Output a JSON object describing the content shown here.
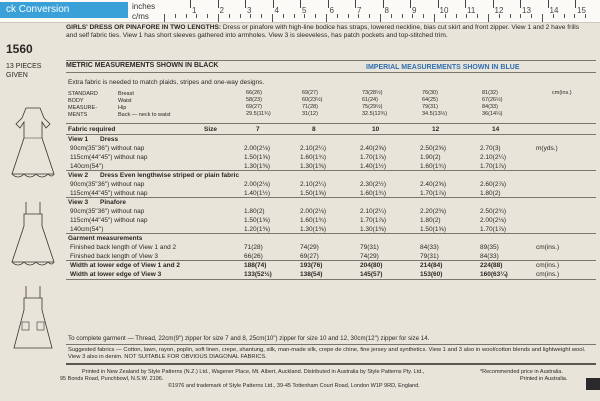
{
  "topbar": {
    "conversion_tab": "ck Conversion",
    "inches_label": "inches",
    "cms_label": "c/ms",
    "inch_numbers": [
      "1",
      "2",
      "3",
      "4",
      "5",
      "6",
      "7",
      "8",
      "9",
      "10",
      "11",
      "12",
      "13",
      "14",
      "15"
    ]
  },
  "pattern": {
    "number": "1560",
    "pieces": [
      "13 PIECES",
      "GIVEN"
    ]
  },
  "header": {
    "title": "GIRLS' DRESS OR PINAFORE IN TWO LENGTHS:",
    "desc": "Dress or pinafore with high-line bodice has straps, lowered neckline, bias cut skirt and front zipper. View 1 and 2 have frills and self fabric ties. View 1 has short sleeves gathered into armholes. View 3 is sleeveless, has patch pockets and top-stitched trim."
  },
  "metric_label": "METRIC MEASUREMENTS SHOWN IN BLACK",
  "imperial_label": "IMPERIAL MEASUREMENTS SHOWN IN BLUE",
  "extra_fabric": "Extra fabric is needed to match plaids, stripes and one-way designs.",
  "body_measurements": {
    "labels": [
      "STANDARD",
      "BODY",
      "MEASURE-",
      "MENTS"
    ],
    "rows": [
      "Breast",
      "Waist",
      "Hip",
      "Back — neck to waist"
    ],
    "cols": [
      [
        "66(26)",
        "58(23)",
        "69(27)",
        "29.5(11¾)"
      ],
      [
        "69(27)",
        "60(23½)",
        "71(28)",
        "31(12)"
      ],
      [
        "73(28½)",
        "61(24)",
        "75(29½)",
        "32.5(12¾)"
      ],
      [
        "76(30)",
        "64(25)",
        "79(31)",
        "34.5(13½)"
      ],
      [
        "81(32)",
        "67(26½)",
        "84(33)",
        "36(14¼)"
      ]
    ],
    "unit": "cm(ins.)"
  },
  "fabric_required": "Fabric required",
  "size_label": "Size",
  "sizes": [
    "7",
    "8",
    "10",
    "12",
    "14"
  ],
  "views": [
    {
      "title": "View 1",
      "subtitle": "Dress",
      "rows": [
        {
          "label": "90cm(35\"36\") without nap",
          "vals": [
            "2.00(2⅛)",
            "2.10(2¼)",
            "2.40(2⅝)",
            "2.50(2⅝)",
            "2.70(3)"
          ],
          "unit": "m(yds.)"
        },
        {
          "label": "115cm(44\"45\") without nap",
          "vals": [
            "1.50(1⅝)",
            "1.60(1¾)",
            "1.70(1⅞)",
            "1.90(2)",
            "2.10(2¼)"
          ],
          "unit": ""
        },
        {
          "label": "140cm(54\")",
          "vals": [
            "1.30(1⅜)",
            "1.30(1⅜)",
            "1.40(1½)",
            "1.60(1¾)",
            "1.70(1⅞)"
          ],
          "unit": ""
        }
      ]
    },
    {
      "title": "View 2",
      "subtitle": "Dress  Even lengthwise striped or plain fabric",
      "rows": [
        {
          "label": "90cm(35\"36\") without nap",
          "vals": [
            "2.00(2⅛)",
            "2.10(2¼)",
            "2.30(2½)",
            "2.40(2⅝)",
            "2.60(2⅞)"
          ],
          "unit": ""
        },
        {
          "label": "115cm(44\"45\") without nap",
          "vals": [
            "1.40(1½)",
            "1.50(1⅝)",
            "1.60(1¾)",
            "1.70(1⅞)",
            "1.80(2)"
          ],
          "unit": ""
        }
      ]
    },
    {
      "title": "View 3",
      "subtitle": "Pinafore",
      "rows": [
        {
          "label": "90cm(35\"36\") without nap",
          "vals": [
            "1.80(2)",
            "2.00(2⅛)",
            "2.10(2¼)",
            "2.20(2⅜)",
            "2.50(2¾)"
          ],
          "unit": ""
        },
        {
          "label": "115cm(44\"45\") without nap",
          "vals": [
            "1.50(1⅝)",
            "1.60(1¾)",
            "1.70(1⅞)",
            "1.80(2)",
            "2.00(2⅛)"
          ],
          "unit": ""
        },
        {
          "label": "140cm(54\")",
          "vals": [
            "1.20(1⅜)",
            "1.30(1⅜)",
            "1.30(1⅜)",
            "1.50(1⅝)",
            "1.70(1⅞)"
          ],
          "unit": ""
        }
      ]
    }
  ],
  "garment_measurements": {
    "title": "Garment measurements",
    "rows": [
      {
        "label": "Finished back length of View 1 and 2",
        "vals": [
          "71(28)",
          "74(29)",
          "79(31)",
          "84(33)",
          "89(35)"
        ],
        "unit": "cm(ins.)"
      },
      {
        "label": "Finished back length of View 3",
        "vals": [
          "66(26)",
          "69(27)",
          "74(29)",
          "79(31)",
          "84(33)"
        ],
        "unit": ""
      },
      {
        "label": "Width at lower edge of View 1 and 2",
        "vals": [
          "188(74)",
          "193(76)",
          "204(80)",
          "214(84)",
          "224(88)"
        ],
        "unit": "cm(ins.)"
      },
      {
        "label": "Width at lower edge of View 3",
        "vals": [
          "133(52½)",
          "138(54)",
          "145(57)",
          "153(60)",
          "160(63¼)"
        ],
        "unit": "cm(ins.)"
      }
    ]
  },
  "complete_garment": "To complete garment — Thread, 22cm(9\") zipper for size 7 and 8, 25cm(10\") zipper for size 10 and 12, 30cm(12\") zipper for size 14.",
  "suggested_fabrics": "Suggested fabrics — Cotton, lawn, rayon, poplin, soft linen, crepe, shantung, silk, man-made silk, crepe de chine, fine jersey and synthetics. View 1 and 3 also in wool/cotton blends and lightweight wool. View 3 also in denim. NOT SUITABLE FOR OBVIOUS DIAGONAL FABRICS.",
  "footer": {
    "line1": "Printed in New Zealand by Style Patterns (N.Z.) Ltd., Wagener Place, Mt. Albert, Auckland. Distributed in Australia by Style Patterns Pty. Ltd.,",
    "line2": "95 Bonds Road, Punchbowl, N.S.W. 2196.",
    "line3": "©1976 and trademark of Style Patterns Ltd., 39-45 Tottenham Court Road, London W1P 9RD, England.",
    "right1": "*Recommended price in Australia.",
    "right2": "Printed in Australia."
  },
  "colors": {
    "accent": "#3aa0d8",
    "imperial_blue": "#2f6fb0",
    "paper": "#e9e4da"
  }
}
